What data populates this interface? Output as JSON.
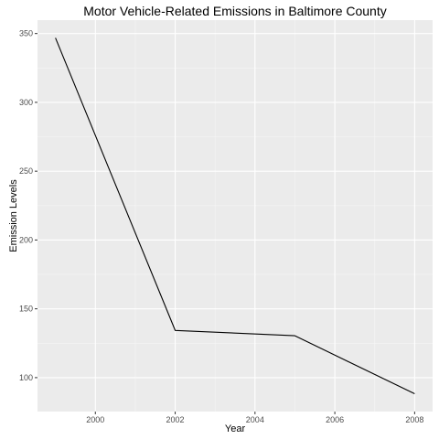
{
  "chart_data": {
    "type": "line",
    "title": "Motor Vehicle-Related Emissions in Baltimore County",
    "xlabel": "Year",
    "ylabel": "Emission Levels",
    "x": [
      1999,
      2002,
      2005,
      2008
    ],
    "series": [
      {
        "values": [
          346.82,
          134.31,
          130.43,
          88.28
        ]
      }
    ],
    "xlim": [
      1998.55,
      2008.45
    ],
    "ylim": [
      75.35,
      359.75
    ],
    "x_ticks": [
      2000,
      2002,
      2004,
      2006,
      2008
    ],
    "x_tick_labels": [
      "2000",
      "2002",
      "2004",
      "2006",
      "2008"
    ],
    "y_ticks": [
      100,
      150,
      200,
      250,
      300,
      350
    ],
    "y_tick_labels": [
      "100",
      "150",
      "200",
      "250",
      "300",
      "350"
    ],
    "grid": true,
    "colors": {
      "panel_background": "#ebebeb",
      "grid_major": "#ffffff",
      "grid_minor": "#f5f5f5",
      "line": "#000000",
      "tick_label": "#4d4d4d",
      "tick_mark": "#333333"
    }
  }
}
